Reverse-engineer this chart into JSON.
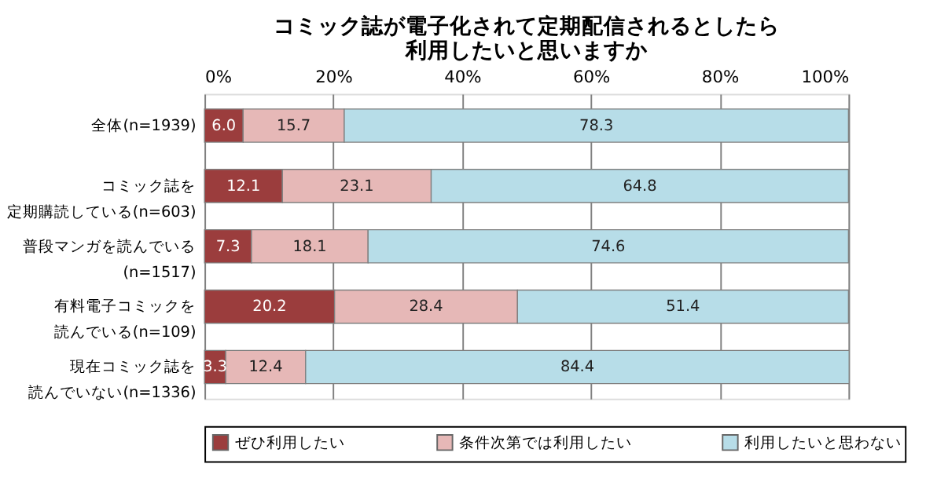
{
  "chart_data": {
    "type": "bar",
    "orientation": "horizontal",
    "stacked": true,
    "title": "コミック誌が電子化されて定期配信されるとしたら利用したいと思いますか",
    "categories": [
      "全体(n=1939)",
      "コミック誌を定期購読している(n=603)",
      "普段マンガを読んでいる(n=1517)",
      "有料電子コミックを読んでいる(n=109)",
      "現在コミック誌を読んでいない(n=1336)"
    ],
    "series": [
      {
        "name": "ぜひ利用したい",
        "color": "#9b3d3d",
        "values": [
          6.0,
          12.1,
          7.3,
          20.2,
          3.3
        ],
        "value_labels": [
          "6.0",
          "12.1",
          "7.3",
          "20.2",
          "3.3"
        ]
      },
      {
        "name": "条件次第では利用したい",
        "color": "#e6b8b7",
        "values": [
          15.7,
          23.1,
          18.1,
          28.4,
          12.4
        ],
        "value_labels": [
          "15.7",
          "23.1",
          "18.1",
          "28.4",
          "12.4"
        ]
      },
      {
        "name": "利用したいと思わない",
        "color": "#b7dde8",
        "values": [
          78.3,
          64.8,
          74.6,
          51.4,
          84.4
        ],
        "value_labels": [
          "78.3",
          "64.8",
          "74.6",
          "51.4",
          "84.4"
        ]
      }
    ],
    "xlim": [
      0,
      100
    ],
    "xticks": [
      {
        "value": 0,
        "label": "0%"
      },
      {
        "value": 20,
        "label": "20%"
      },
      {
        "value": 40,
        "label": "40%"
      },
      {
        "value": 60,
        "label": "60%"
      },
      {
        "value": 80,
        "label": "80%"
      },
      {
        "value": 100,
        "label": "100%"
      }
    ],
    "grid": "x",
    "legend": "bottom"
  }
}
